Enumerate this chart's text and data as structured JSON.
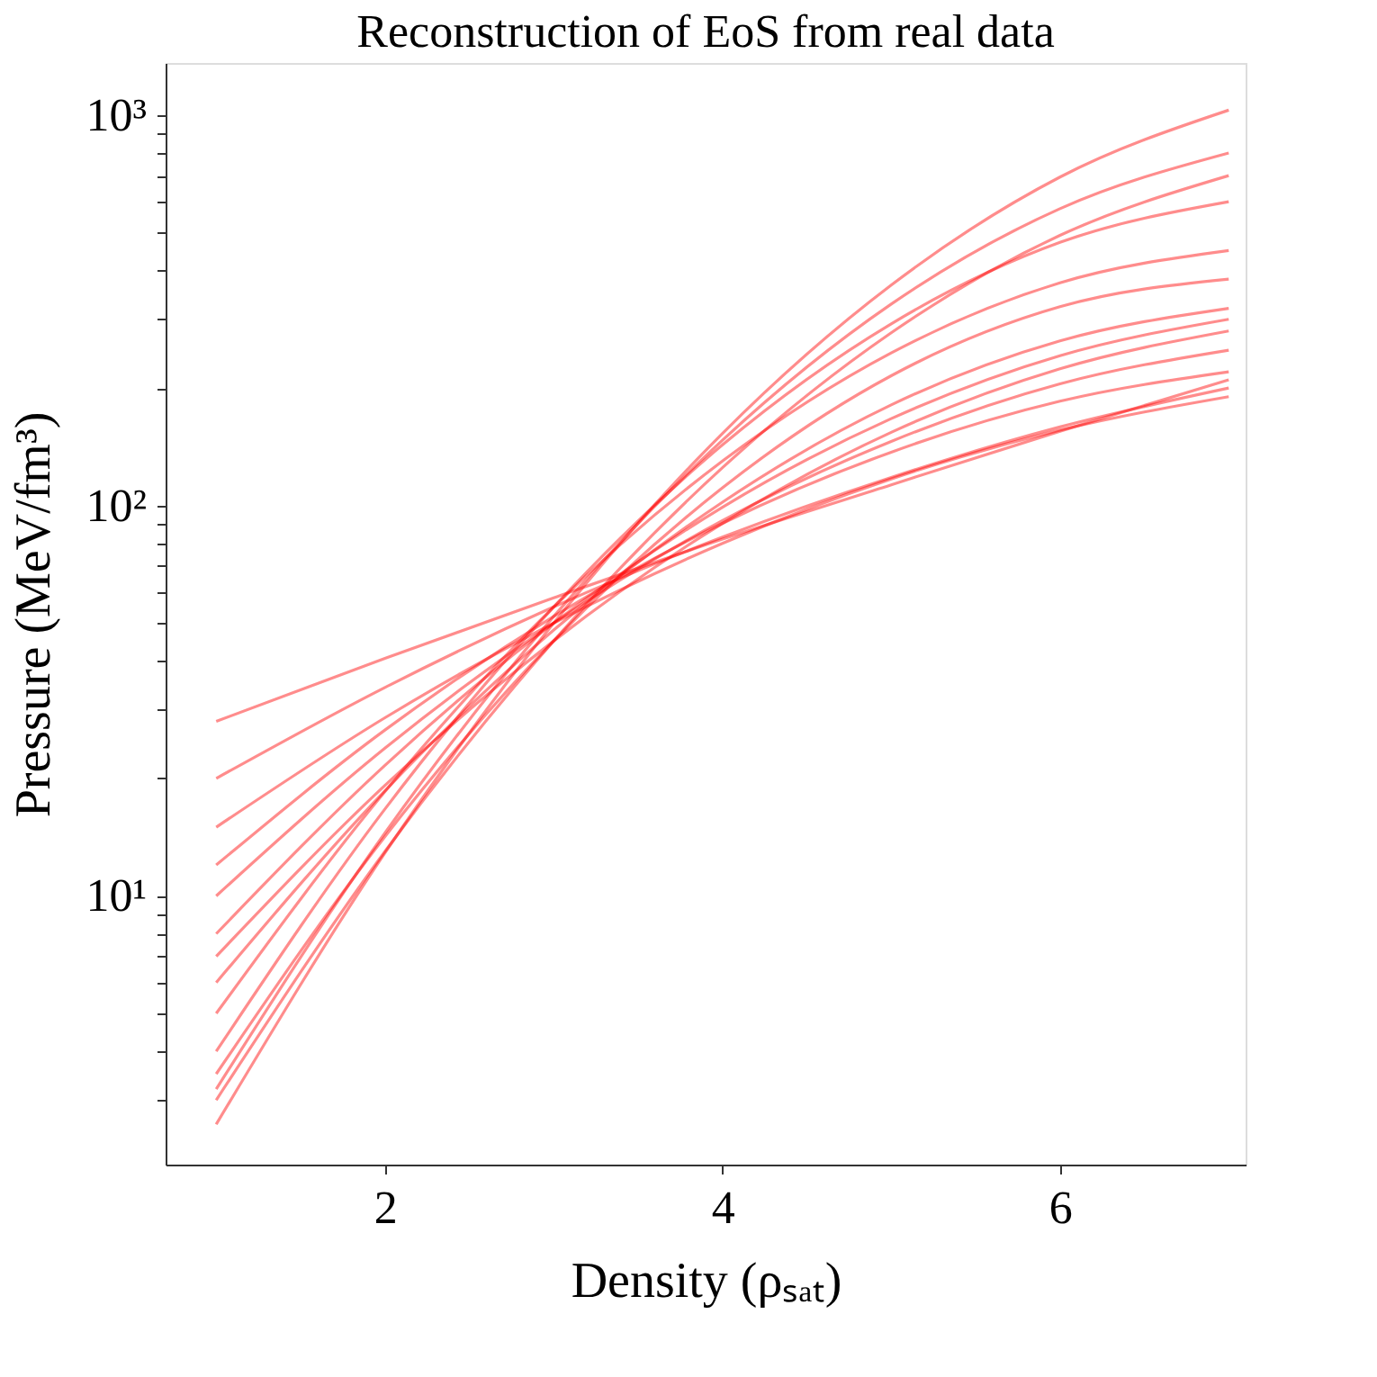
{
  "chart_data": {
    "type": "line",
    "title": "Reconstruction of EoS from real data",
    "xlabel": "Density (ρₛₐₜ)",
    "ylabel": "Pressure (MeV/fm³)",
    "x": [
      1,
      2,
      3,
      4,
      5,
      6,
      7
    ],
    "series": [
      {
        "color": "#ff0000",
        "values": [
          2.6,
          12.9,
          50,
          153,
          367,
          694,
          1030
        ]
      },
      {
        "color": "#ff0000",
        "values": [
          3.2,
          14.5,
          52,
          147,
          328,
          576,
          800
        ]
      },
      {
        "color": "#ff0000",
        "values": [
          4,
          16.7,
          55,
          143,
          292,
          472,
          600
        ]
      },
      {
        "color": "#ff0000",
        "values": [
          5,
          18.5,
          55,
          130,
          246,
          372,
          450
        ]
      },
      {
        "color": "#ff0000",
        "values": [
          3,
          13,
          45,
          125,
          277,
          492,
          700
        ]
      },
      {
        "color": "#ff0000",
        "values": [
          8,
          21.6,
          50,
          99,
          167,
          242,
          300
        ]
      },
      {
        "color": "#ff0000",
        "values": [
          10,
          23.9,
          50,
          91.5,
          146,
          205,
          250
        ]
      },
      {
        "color": "#ff0000",
        "values": [
          12,
          26.6,
          52,
          90,
          137,
          185,
          220
        ]
      },
      {
        "color": "#ff0000",
        "values": [
          7,
          19.2,
          45,
          90,
          154,
          224,
          280
        ]
      },
      {
        "color": "#ff0000",
        "values": [
          15,
          28.6,
          50,
          80,
          117,
          156,
          190
        ]
      },
      {
        "color": "#ff0000",
        "values": [
          20,
          34.2,
          55,
          83,
          118,
          159,
          200
        ]
      },
      {
        "color": "#ff0000",
        "values": [
          28,
          40.6,
          58,
          82,
          113,
          155,
          210
        ]
      },
      {
        "color": "#ff0000",
        "values": [
          6,
          18.6,
          48,
          102,
          181,
          264,
          320
        ]
      },
      {
        "color": "#ff0000",
        "values": [
          3.5,
          14.2,
          45,
          111,
          215,
          323,
          380
        ]
      }
    ],
    "xlim": [
      0.7,
      7.1
    ],
    "xticks": [
      2,
      4,
      6
    ],
    "ylim": [
      2.05,
      1360
    ],
    "yticks": [
      {
        "value": 3,
        "label": null
      },
      {
        "value": 4,
        "label": null
      },
      {
        "value": 5,
        "label": null
      },
      {
        "value": 6,
        "label": null
      },
      {
        "value": 7,
        "label": null
      },
      {
        "value": 8,
        "label": null
      },
      {
        "value": 9,
        "label": null
      },
      {
        "value": 10,
        "label": "10¹"
      },
      {
        "value": 20,
        "label": null
      },
      {
        "value": 30,
        "label": null
      },
      {
        "value": 40,
        "label": null
      },
      {
        "value": 50,
        "label": null
      },
      {
        "value": 60,
        "label": null
      },
      {
        "value": 70,
        "label": null
      },
      {
        "value": 80,
        "label": null
      },
      {
        "value": 90,
        "label": null
      },
      {
        "value": 100,
        "label": "10²"
      },
      {
        "value": 200,
        "label": null
      },
      {
        "value": 300,
        "label": null
      },
      {
        "value": 400,
        "label": null
      },
      {
        "value": 500,
        "label": null
      },
      {
        "value": 600,
        "label": null
      },
      {
        "value": 700,
        "label": null
      },
      {
        "value": 800,
        "label": null
      },
      {
        "value": 900,
        "label": null
      },
      {
        "value": 1000,
        "label": "10³"
      }
    ],
    "log": "y",
    "grid": false,
    "line_style": "solid"
  }
}
